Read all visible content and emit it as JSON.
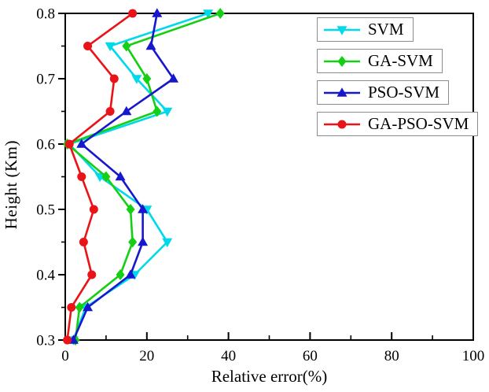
{
  "chart_data": {
    "type": "line",
    "title": "",
    "xlabel": "Relative error(%)",
    "ylabel": "Height (Km)",
    "xlim": [
      0,
      100
    ],
    "ylim": [
      0.3,
      0.8
    ],
    "x_ticks": [
      0,
      20,
      40,
      60,
      80,
      100
    ],
    "x_tick_labels": [
      "0",
      "20",
      "40",
      "60",
      "80",
      "100"
    ],
    "x_minor_ticks": [
      10,
      30,
      50,
      70,
      90
    ],
    "y_ticks": [
      0.3,
      0.4,
      0.5,
      0.6,
      0.7,
      0.8
    ],
    "y_tick_labels": [
      "0.3",
      "0.4",
      "0.5",
      "0.6",
      "0.7",
      "0.8"
    ],
    "y_minor_ticks": [
      0.35,
      0.45,
      0.55,
      0.65,
      0.75
    ],
    "grid": false,
    "legend_position": "top-right",
    "note": "Each series lists relative error (%) on the x-axis for each height (Km) on the y-axis",
    "heights": [
      0.3,
      0.35,
      0.4,
      0.45,
      0.5,
      0.55,
      0.6,
      0.65,
      0.7,
      0.75,
      0.8
    ],
    "series": [
      {
        "name": "SVM",
        "color": "#00d9ea",
        "marker": "triangle-down",
        "values": [
          2.0,
          5.0,
          17.0,
          25.0,
          20.0,
          8.5,
          1.0,
          25.0,
          17.5,
          11.0,
          35.0
        ]
      },
      {
        "name": "GA-SVM",
        "color": "#15cf15",
        "marker": "diamond",
        "values": [
          2.5,
          3.5,
          13.5,
          16.5,
          16.0,
          10.0,
          0.5,
          22.5,
          20.0,
          15.0,
          38.0
        ]
      },
      {
        "name": "PSO-SVM",
        "color": "#1717cc",
        "marker": "triangle-up",
        "values": [
          2.0,
          5.5,
          16.0,
          19.0,
          19.0,
          13.5,
          4.0,
          15.0,
          26.5,
          21.0,
          22.5
        ]
      },
      {
        "name": "GA-PSO-SVM",
        "color": "#e91318",
        "marker": "circle",
        "values": [
          0.5,
          1.5,
          6.5,
          4.5,
          7.0,
          4.0,
          1.0,
          11.0,
          12.0,
          5.5,
          16.5
        ]
      }
    ],
    "colors": {
      "axis": "#000000",
      "background": "#ffffff",
      "legend_border": "#8c8c8c"
    }
  }
}
